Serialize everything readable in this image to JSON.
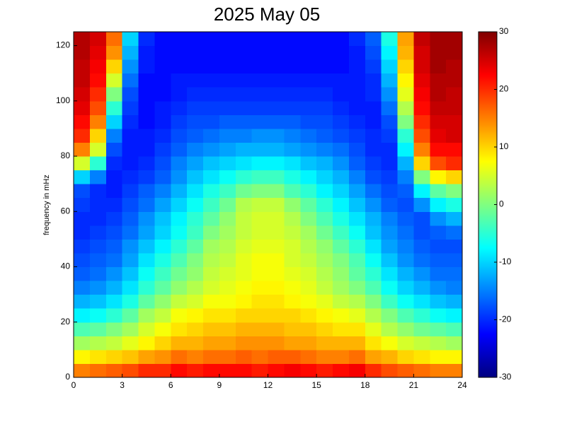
{
  "chart_data": {
    "type": "heatmap",
    "title": "2025 May 05",
    "ylabel": "frequency in mHz",
    "colormap": "jet",
    "xbins": [
      0,
      1,
      2,
      3,
      4,
      5,
      6,
      7,
      8,
      9,
      10,
      11,
      12,
      13,
      14,
      15,
      16,
      17,
      18,
      19,
      20,
      21,
      22,
      23,
      24
    ],
    "ybins": [
      0,
      5,
      10,
      15,
      20,
      25,
      30,
      35,
      40,
      45,
      50,
      55,
      60,
      65,
      70,
      75,
      80,
      85,
      90,
      95,
      100,
      105,
      110,
      115,
      120,
      125
    ],
    "xlim": [
      0,
      24
    ],
    "xticks": [
      0,
      3,
      6,
      9,
      12,
      15,
      18,
      21,
      24
    ],
    "ylim": [
      0,
      125
    ],
    "yticks": [
      0,
      20,
      40,
      60,
      80,
      100,
      120
    ],
    "clim": [
      -30,
      30
    ],
    "cticks": [
      -30,
      -20,
      -10,
      0,
      10,
      20,
      30
    ],
    "values": [
      [
        15,
        16,
        17,
        18,
        20,
        20,
        22,
        21,
        22,
        22,
        22,
        21,
        22,
        23,
        22,
        21,
        22,
        23,
        20,
        18,
        17,
        16,
        15,
        15
      ],
      [
        8,
        9,
        10,
        11,
        13,
        14,
        16,
        15,
        16,
        16,
        17,
        16,
        17,
        17,
        16,
        15,
        15,
        16,
        13,
        12,
        10,
        9,
        8,
        8
      ],
      [
        2,
        3,
        4,
        6,
        8,
        10,
        12,
        12,
        13,
        13,
        14,
        14,
        14,
        13,
        13,
        12,
        12,
        12,
        9,
        7,
        5,
        4,
        3,
        2
      ],
      [
        -3,
        -2,
        0,
        2,
        5,
        7,
        9,
        10,
        11,
        11,
        12,
        12,
        12,
        11,
        11,
        10,
        9,
        9,
        6,
        3,
        1,
        -1,
        -2,
        -3
      ],
      [
        -8,
        -7,
        -5,
        -2,
        2,
        4,
        7,
        8,
        9,
        9,
        10,
        10,
        10,
        10,
        9,
        8,
        7,
        6,
        3,
        0,
        -3,
        -5,
        -7,
        -8
      ],
      [
        -12,
        -11,
        -9,
        -6,
        -2,
        1,
        4,
        5,
        7,
        7,
        8,
        9,
        9,
        8,
        7,
        6,
        4,
        3,
        0,
        -4,
        -7,
        -9,
        -11,
        -12
      ],
      [
        -15,
        -14,
        -12,
        -9,
        -5,
        -2,
        1,
        3,
        5,
        6,
        7,
        8,
        8,
        7,
        6,
        4,
        2,
        0,
        -3,
        -7,
        -10,
        -12,
        -14,
        -15
      ],
      [
        -17,
        -16,
        -14,
        -11,
        -7,
        -4,
        -1,
        1,
        4,
        5,
        6,
        7,
        7,
        6,
        5,
        3,
        1,
        -2,
        -5,
        -9,
        -12,
        -14,
        -16,
        -16
      ],
      [
        -18,
        -17,
        -16,
        -13,
        -9,
        -6,
        -3,
        0,
        3,
        4,
        6,
        7,
        7,
        5,
        4,
        2,
        0,
        -3,
        -7,
        -11,
        -14,
        -16,
        -17,
        -17
      ],
      [
        -19,
        -18,
        -17,
        -14,
        -11,
        -8,
        -5,
        -2,
        2,
        3,
        5,
        6,
        6,
        5,
        3,
        1,
        -2,
        -5,
        -9,
        -13,
        -15,
        -17,
        -18,
        -18
      ],
      [
        -20,
        -19,
        -18,
        -16,
        -13,
        -10,
        -7,
        -4,
        0,
        2,
        4,
        5,
        5,
        4,
        2,
        -1,
        -4,
        -7,
        -11,
        -14,
        -16,
        -18,
        -17,
        -16
      ],
      [
        -20,
        -20,
        -19,
        -17,
        -14,
        -11,
        -8,
        -5,
        -2,
        1,
        4,
        5,
        5,
        3,
        0,
        -3,
        -6,
        -9,
        -12,
        -15,
        -17,
        -18,
        -14,
        -12
      ],
      [
        -19,
        -20,
        -20,
        -18,
        -16,
        -13,
        -10,
        -7,
        -4,
        -1,
        3,
        4,
        4,
        1,
        -2,
        -5,
        -8,
        -11,
        -14,
        -17,
        -18,
        -14,
        -8,
        -6
      ],
      [
        -18,
        -20,
        -21,
        -19,
        -17,
        -15,
        -12,
        -9,
        -6,
        -4,
        -1,
        0,
        0,
        -3,
        -5,
        -8,
        -10,
        -13,
        -16,
        -18,
        -17,
        -8,
        -2,
        0
      ],
      [
        -10,
        -15,
        -21,
        -20,
        -19,
        -17,
        -14,
        -11,
        -9,
        -7,
        -5,
        -4,
        -4,
        -6,
        -8,
        -10,
        -12,
        -15,
        -18,
        -19,
        -15,
        0,
        8,
        10
      ],
      [
        5,
        -5,
        -20,
        -21,
        -20,
        -18,
        -15,
        -13,
        -11,
        -10,
        -9,
        -8,
        -8,
        -9,
        -11,
        -12,
        -14,
        -17,
        -19,
        -20,
        -12,
        10,
        18,
        20
      ],
      [
        15,
        5,
        -18,
        -21,
        -21,
        -19,
        -17,
        -15,
        -14,
        -13,
        -12,
        -12,
        -12,
        -13,
        -14,
        -15,
        -16,
        -18,
        -20,
        -20,
        -8,
        15,
        22,
        22
      ],
      [
        20,
        10,
        -15,
        -21,
        -21,
        -20,
        -18,
        -17,
        -16,
        -15,
        -15,
        -14,
        -14,
        -15,
        -16,
        -17,
        -18,
        -19,
        -20,
        -19,
        -5,
        18,
        24,
        25
      ],
      [
        22,
        15,
        -10,
        -20,
        -22,
        -21,
        -19,
        -18,
        -18,
        -17,
        -17,
        -17,
        -17,
        -17,
        -18,
        -18,
        -19,
        -20,
        -21,
        -18,
        0,
        20,
        25,
        25
      ],
      [
        24,
        18,
        -5,
        -19,
        -22,
        -21,
        -20,
        -19,
        -19,
        -19,
        -19,
        -19,
        -19,
        -19,
        -19,
        -19,
        -20,
        -21,
        -21,
        -16,
        3,
        22,
        26,
        26
      ],
      [
        25,
        20,
        0,
        -18,
        -22,
        -22,
        -21,
        -20,
        -20,
        -20,
        -20,
        -20,
        -20,
        -20,
        -20,
        -20,
        -21,
        -21,
        -20,
        -14,
        6,
        23,
        27,
        26
      ],
      [
        26,
        22,
        5,
        -16,
        -22,
        -22,
        -21,
        -21,
        -21,
        -21,
        -21,
        -21,
        -21,
        -21,
        -21,
        -21,
        -21,
        -21,
        -20,
        -12,
        8,
        24,
        27,
        27
      ],
      [
        26,
        23,
        10,
        -14,
        -21,
        -22,
        -22,
        -22,
        -22,
        -22,
        -22,
        -22,
        -22,
        -22,
        -22,
        -22,
        -22,
        -21,
        -19,
        -10,
        10,
        25,
        28,
        27
      ],
      [
        27,
        24,
        14,
        -12,
        -21,
        -22,
        -22,
        -22,
        -22,
        -22,
        -22,
        -22,
        -22,
        -22,
        -22,
        -22,
        -22,
        -21,
        -18,
        -8,
        12,
        25,
        28,
        28
      ],
      [
        27,
        25,
        16,
        -10,
        -20,
        -22,
        -22,
        -22,
        -22,
        -22,
        -22,
        -22,
        -22,
        -22,
        -22,
        -22,
        -22,
        -20,
        -17,
        -6,
        13,
        26,
        28,
        28
      ]
    ]
  }
}
